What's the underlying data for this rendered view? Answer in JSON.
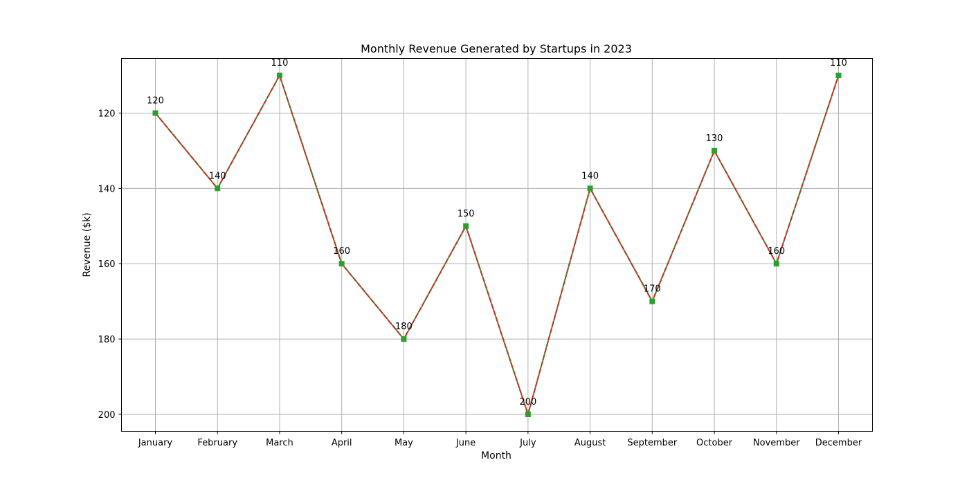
{
  "chart_data": {
    "type": "line",
    "title": "Monthly Revenue Generated by Startups in 2023",
    "xlabel": "Month",
    "ylabel": "Revenue ($k)",
    "categories": [
      "January",
      "February",
      "March",
      "April",
      "May",
      "June",
      "July",
      "August",
      "September",
      "October",
      "November",
      "December"
    ],
    "series": [
      {
        "values": [
          120,
          140,
          110,
          160,
          180,
          150,
          200,
          140,
          170,
          130,
          160,
          110
        ]
      }
    ],
    "ylim": [
      204.5,
      105.5
    ],
    "y_inverted": true,
    "yticks": [
      120,
      140,
      160,
      180,
      200
    ],
    "grid": true,
    "data_labels": true,
    "colors": {
      "line_base": "#2ca02c",
      "line_dash": "#d62728",
      "marker": "#2ca02c",
      "grid": "#b0b0b0",
      "axes": "#000000"
    },
    "marker_shape": "square"
  }
}
